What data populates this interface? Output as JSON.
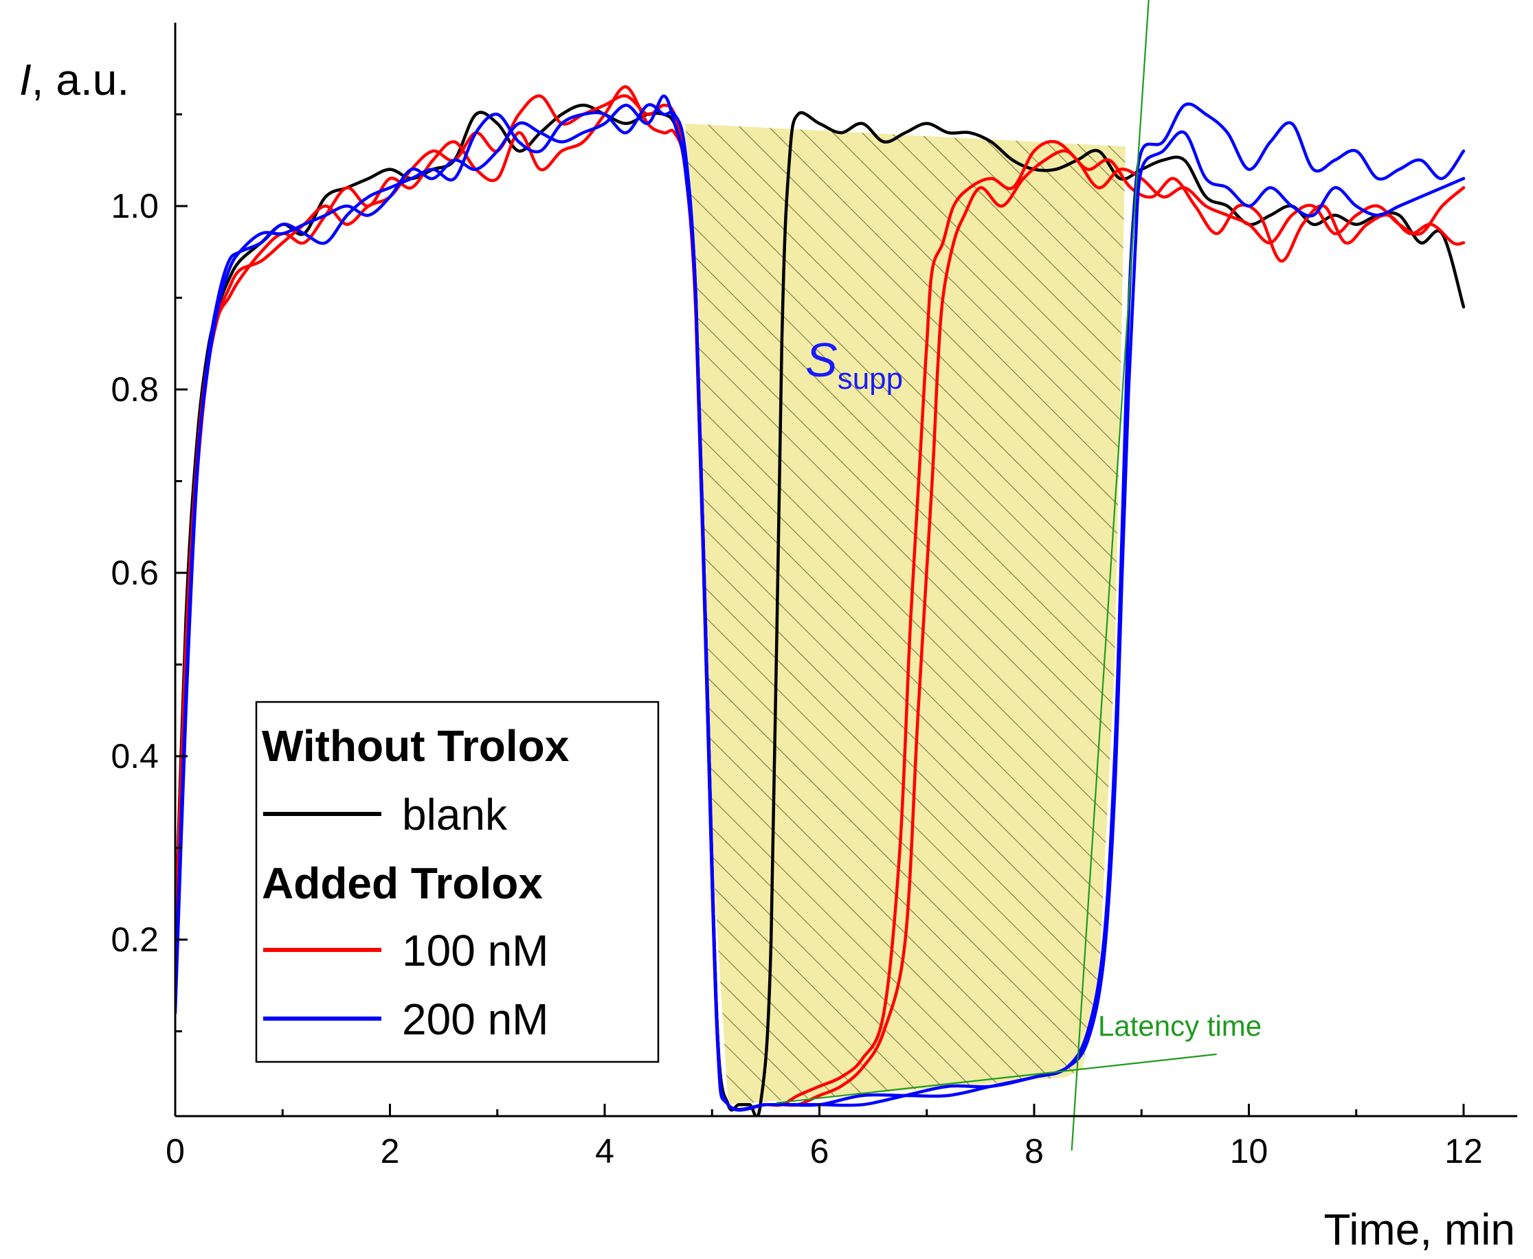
{
  "chart_data": {
    "type": "line",
    "xlabel": "Time, min",
    "ylabel_italic": "I",
    "ylabel_rest": ", a.u.",
    "xlim": [
      0,
      12.5
    ],
    "ylim": [
      0.02,
      1.2
    ],
    "x_ticks": [
      0,
      2,
      4,
      6,
      8,
      10,
      12
    ],
    "x_tick_labels": [
      "0",
      "2",
      "4",
      "6",
      "8",
      "10",
      "12"
    ],
    "y_ticks": [
      0.2,
      0.4,
      0.6,
      0.8,
      1.0
    ],
    "y_tick_labels": [
      "0.2",
      "0.4",
      "0.6",
      "0.8",
      "1.0"
    ],
    "legend": {
      "group1_title": "Without Trolox",
      "blank_label": "blank",
      "group2_title": "Added Trolox",
      "label_100": "100 nM",
      "label_200": "200 nM"
    },
    "annotations": {
      "s_main": "S",
      "s_sub": "supp",
      "latency": "Latency time"
    },
    "colors": {
      "blank": "#000000",
      "nM100": "#ff0000",
      "nM200": "#0000ff",
      "shade": "#f2eca6",
      "hatch": "#7a7640",
      "tangent": "#1f9a1f",
      "ssupp": "#1a1aff"
    },
    "series": [
      {
        "name": "blank",
        "color": "#000000",
        "x": [
          0,
          0.1,
          0.2,
          0.3,
          0.4,
          0.5,
          0.6,
          0.8,
          1.0,
          1.2,
          1.4,
          1.6,
          1.8,
          2.0,
          2.2,
          2.4,
          2.6,
          2.8,
          3.0,
          3.2,
          3.4,
          3.6,
          3.8,
          4.0,
          4.2,
          4.4,
          4.55,
          4.65,
          4.75,
          4.85,
          4.95,
          5.05,
          5.15,
          5.25,
          5.35,
          5.45,
          5.55,
          5.65,
          5.72,
          5.8,
          6.0,
          6.2,
          6.4,
          6.6,
          6.8,
          7.0,
          7.2,
          7.4,
          7.6,
          7.8,
          8.0,
          8.2,
          8.4,
          8.6,
          8.8,
          9.0,
          9.2,
          9.4,
          9.6,
          9.8,
          10.0,
          10.2,
          10.4,
          10.6,
          10.8,
          11.0,
          11.2,
          11.4,
          11.6,
          11.8,
          12.0
        ],
        "y": [
          0.2,
          0.55,
          0.74,
          0.84,
          0.89,
          0.92,
          0.94,
          0.96,
          0.98,
          0.97,
          1.01,
          1.02,
          1.03,
          1.04,
          1.03,
          1.04,
          1.05,
          1.1,
          1.09,
          1.06,
          1.08,
          1.1,
          1.11,
          1.1,
          1.09,
          1.1,
          1.1,
          1.09,
          1.05,
          0.9,
          0.5,
          0.1,
          0.02,
          0.02,
          0.02,
          0.02,
          0.2,
          0.85,
          1.05,
          1.1,
          1.09,
          1.08,
          1.09,
          1.07,
          1.08,
          1.09,
          1.08,
          1.08,
          1.07,
          1.05,
          1.04,
          1.04,
          1.05,
          1.06,
          1.03,
          1.04,
          1.05,
          1.05,
          1.01,
          1.0,
          0.98,
          0.99,
          1.0,
          0.98,
          0.99,
          0.98,
          0.99,
          0.99,
          0.96,
          0.97,
          0.89
        ]
      },
      {
        "name": "100 nM (a)",
        "color": "#ff0000",
        "x": [
          0,
          0.1,
          0.2,
          0.3,
          0.4,
          0.5,
          0.6,
          0.8,
          1.0,
          1.2,
          1.4,
          1.6,
          1.8,
          2.0,
          2.2,
          2.4,
          2.6,
          2.8,
          3.0,
          3.2,
          3.4,
          3.6,
          3.8,
          4.0,
          4.2,
          4.4,
          4.55,
          4.65,
          4.75,
          4.85,
          4.95,
          5.05,
          5.15,
          5.5,
          5.65,
          5.8,
          6.0,
          6.2,
          6.4,
          6.6,
          6.75,
          6.85,
          6.95,
          7.0,
          7.05,
          7.15,
          7.25,
          7.4,
          7.6,
          7.8,
          8.0,
          8.2,
          8.4,
          8.6,
          8.8,
          9.0,
          9.2,
          9.4,
          9.6,
          9.8,
          10.0,
          10.2,
          10.4,
          10.6,
          10.8,
          11.0,
          11.2,
          11.4,
          11.6,
          11.8,
          12.0
        ],
        "y": [
          0.17,
          0.5,
          0.7,
          0.82,
          0.88,
          0.91,
          0.93,
          0.94,
          0.96,
          0.98,
          1.0,
          0.98,
          1.0,
          1.01,
          1.04,
          1.06,
          1.05,
          1.08,
          1.06,
          1.1,
          1.12,
          1.09,
          1.1,
          1.11,
          1.12,
          1.1,
          1.11,
          1.1,
          1.05,
          0.9,
          0.5,
          0.1,
          0.02,
          0.02,
          0.02,
          0.03,
          0.04,
          0.05,
          0.07,
          0.12,
          0.3,
          0.55,
          0.75,
          0.85,
          0.93,
          0.96,
          1.0,
          1.02,
          1.03,
          1.02,
          1.06,
          1.07,
          1.05,
          1.02,
          1.04,
          1.03,
          1.01,
          1.02,
          1.0,
          0.99,
          0.98,
          0.96,
          0.99,
          1.0,
          0.97,
          0.99,
          1.0,
          0.98,
          0.97,
          1.0,
          1.02
        ]
      },
      {
        "name": "100 nM (b)",
        "color": "#ff0000",
        "x": [
          0,
          0.1,
          0.2,
          0.3,
          0.4,
          0.5,
          0.6,
          0.8,
          1.0,
          1.2,
          1.4,
          1.6,
          1.8,
          2.0,
          2.2,
          2.4,
          2.6,
          2.8,
          3.0,
          3.2,
          3.4,
          3.6,
          3.8,
          4.0,
          4.2,
          4.4,
          4.55,
          4.65,
          4.75,
          4.85,
          4.95,
          5.05,
          5.15,
          5.5,
          5.65,
          5.8,
          6.0,
          6.2,
          6.4,
          6.6,
          6.8,
          6.92,
          7.05,
          7.1,
          7.15,
          7.25,
          7.35,
          7.5,
          7.7,
          7.9,
          8.1,
          8.3,
          8.5,
          8.7,
          8.9,
          9.1,
          9.3,
          9.5,
          9.7,
          9.9,
          10.1,
          10.3,
          10.5,
          10.7,
          10.9,
          11.1,
          11.3,
          11.5,
          11.7,
          11.9,
          12.0
        ],
        "y": [
          0.2,
          0.52,
          0.72,
          0.83,
          0.88,
          0.9,
          0.92,
          0.95,
          0.97,
          0.96,
          0.99,
          1.02,
          1.0,
          1.03,
          1.02,
          1.05,
          1.07,
          1.04,
          1.03,
          1.08,
          1.04,
          1.06,
          1.07,
          1.1,
          1.13,
          1.09,
          1.08,
          1.08,
          1.04,
          0.88,
          0.48,
          0.09,
          0.02,
          0.02,
          0.02,
          0.02,
          0.03,
          0.04,
          0.06,
          0.1,
          0.2,
          0.45,
          0.7,
          0.82,
          0.9,
          0.96,
          0.99,
          1.02,
          1.0,
          1.03,
          1.05,
          1.06,
          1.04,
          1.05,
          1.02,
          1.01,
          1.03,
          1.0,
          0.97,
          1.0,
          0.99,
          0.94,
          0.98,
          1.0,
          0.96,
          0.98,
          0.99,
          0.97,
          0.98,
          0.96,
          0.96
        ]
      },
      {
        "name": "200 nM (a)",
        "color": "#0000ff",
        "x": [
          0,
          0.1,
          0.2,
          0.3,
          0.4,
          0.5,
          0.6,
          0.8,
          1.0,
          1.2,
          1.4,
          1.6,
          1.8,
          2.0,
          2.2,
          2.4,
          2.6,
          2.8,
          3.0,
          3.2,
          3.4,
          3.6,
          3.8,
          4.0,
          4.2,
          4.4,
          4.55,
          4.65,
          4.75,
          4.85,
          4.95,
          5.05,
          5.15,
          5.5,
          5.7,
          6.0,
          6.4,
          6.8,
          7.2,
          7.6,
          8.0,
          8.3,
          8.5,
          8.65,
          8.75,
          8.82,
          8.87,
          8.92,
          9.0,
          9.2,
          9.4,
          9.6,
          9.8,
          10.0,
          10.2,
          10.4,
          10.6,
          10.8,
          11.0,
          11.2,
          11.4,
          11.6,
          11.8,
          12.0
        ],
        "y": [
          0.12,
          0.45,
          0.7,
          0.83,
          0.9,
          0.94,
          0.95,
          0.96,
          0.98,
          0.97,
          0.96,
          0.99,
          1.01,
          1.02,
          1.03,
          1.04,
          1.03,
          1.08,
          1.1,
          1.07,
          1.06,
          1.09,
          1.1,
          1.1,
          1.08,
          1.11,
          1.1,
          1.1,
          1.06,
          0.9,
          0.5,
          0.1,
          0.02,
          0.02,
          0.02,
          0.02,
          0.03,
          0.03,
          0.03,
          0.04,
          0.05,
          0.06,
          0.1,
          0.2,
          0.4,
          0.65,
          0.85,
          0.98,
          1.06,
          1.07,
          1.11,
          1.1,
          1.08,
          1.04,
          1.07,
          1.09,
          1.04,
          1.05,
          1.06,
          1.03,
          1.04,
          1.05,
          1.03,
          1.06
        ]
      },
      {
        "name": "200 nM (b)",
        "color": "#0000ff",
        "x": [
          0,
          0.1,
          0.2,
          0.3,
          0.4,
          0.5,
          0.6,
          0.8,
          1.0,
          1.2,
          1.4,
          1.6,
          1.8,
          2.0,
          2.2,
          2.4,
          2.6,
          2.8,
          3.0,
          3.2,
          3.4,
          3.6,
          3.8,
          4.0,
          4.2,
          4.4,
          4.55,
          4.65,
          4.75,
          4.85,
          4.95,
          5.05,
          5.15,
          5.5,
          5.7,
          6.0,
          6.4,
          6.8,
          7.2,
          7.6,
          8.0,
          8.3,
          8.5,
          8.65,
          8.75,
          8.82,
          8.88,
          8.94,
          9.0,
          9.2,
          9.4,
          9.6,
          9.8,
          10.0,
          10.2,
          10.4,
          10.6,
          10.8,
          11.0,
          11.2,
          11.4,
          11.6,
          11.8,
          12.0
        ],
        "y": [
          0.14,
          0.47,
          0.71,
          0.82,
          0.89,
          0.93,
          0.95,
          0.97,
          0.97,
          0.98,
          0.99,
          1.0,
          0.99,
          1.01,
          1.04,
          1.03,
          1.05,
          1.04,
          1.06,
          1.09,
          1.08,
          1.07,
          1.08,
          1.09,
          1.11,
          1.09,
          1.12,
          1.09,
          1.04,
          0.89,
          0.48,
          0.09,
          0.02,
          0.02,
          0.02,
          0.02,
          0.02,
          0.03,
          0.04,
          0.04,
          0.05,
          0.06,
          0.09,
          0.18,
          0.36,
          0.6,
          0.8,
          0.95,
          1.04,
          1.06,
          1.08,
          1.03,
          1.02,
          1.0,
          1.02,
          1.0,
          0.99,
          1.02,
          1.0,
          0.99,
          1.0,
          1.01,
          1.02,
          1.03
        ]
      }
    ]
  }
}
